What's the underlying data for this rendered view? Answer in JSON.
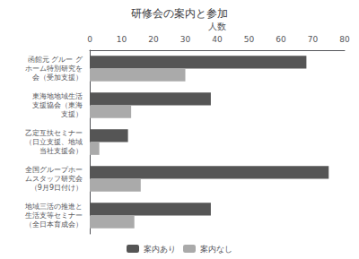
{
  "chart_data": {
    "type": "bar",
    "orientation": "horizontal",
    "title": "研修会の案内と参加",
    "xlabel": "人数",
    "categories": [
      "函館元 グルー グ\nホーム特別研究を\n会（受加支援）",
      "東海地地域生活\n支援協会（東海\n支援）",
      "乙定互扶セミナー\n（日立支援、地域\n当社支援会）",
      "全国グループホー\nムスタッフ研究会\n（9月9日付け）",
      "地域三活の推進と\n生活支等セミナー\n（全日本育成会）"
    ],
    "series": [
      {
        "name": "案内あり",
        "color": "#555555",
        "values": [
          68,
          38,
          12,
          75,
          38
        ]
      },
      {
        "name": "案内なし",
        "color": "#aaaaaa",
        "values": [
          30,
          13,
          3,
          16,
          14
        ]
      }
    ],
    "xlim": [
      0,
      80
    ],
    "xticks": [
      0,
      10,
      20,
      30,
      40,
      50,
      60,
      70,
      80
    ],
    "grid": false,
    "legend": "bottom"
  }
}
